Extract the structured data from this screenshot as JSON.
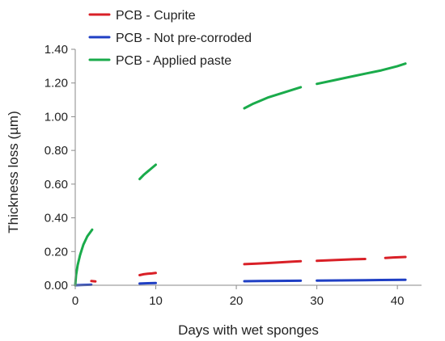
{
  "chart_data": {
    "type": "line",
    "title": "",
    "xlabel": "Days with wet sponges",
    "ylabel": "Thickness loss (µm)",
    "xlim": [
      0,
      43
    ],
    "ylim": [
      0,
      1.4
    ],
    "x_ticks": [
      0,
      10,
      20,
      30,
      40
    ],
    "y_ticks": [
      0.0,
      0.2,
      0.4,
      0.6,
      0.8,
      1.0,
      1.2,
      1.4
    ],
    "x_tick_labels": [
      "0",
      "10",
      "20",
      "30",
      "40"
    ],
    "y_tick_labels": [
      "0.00",
      "0.20",
      "0.40",
      "0.60",
      "0.80",
      "1.00",
      "1.20",
      "1.40"
    ],
    "grid": false,
    "legend_position": "top-left",
    "series": [
      {
        "name": "PCB - Cuprite",
        "color": "#d92027",
        "segments": [
          [
            [
              2.0,
              0.025
            ],
            [
              2.5,
              0.023
            ]
          ],
          [
            [
              8.0,
              0.06
            ],
            [
              8.5,
              0.065
            ],
            [
              9.0,
              0.068
            ],
            [
              9.5,
              0.07
            ],
            [
              10.0,
              0.073
            ]
          ],
          [
            [
              21.0,
              0.125
            ],
            [
              22.5,
              0.128
            ],
            [
              24.0,
              0.132
            ],
            [
              25.5,
              0.136
            ],
            [
              27.0,
              0.14
            ],
            [
              28.0,
              0.143
            ]
          ],
          [
            [
              30.0,
              0.145
            ],
            [
              31.5,
              0.148
            ],
            [
              33.0,
              0.151
            ],
            [
              34.5,
              0.154
            ],
            [
              36.0,
              0.156
            ]
          ],
          [
            [
              38.5,
              0.162
            ],
            [
              39.5,
              0.165
            ],
            [
              41.0,
              0.168
            ]
          ]
        ]
      },
      {
        "name": "PCB - Not pre-corroded",
        "color": "#1f3fc4",
        "segments": [
          [
            [
              0.0,
              0.0
            ],
            [
              1.0,
              0.002
            ],
            [
              2.0,
              0.003
            ]
          ],
          [
            [
              8.0,
              0.01
            ],
            [
              9.0,
              0.012
            ],
            [
              10.0,
              0.013
            ]
          ],
          [
            [
              21.0,
              0.024
            ],
            [
              23.0,
              0.025
            ],
            [
              25.0,
              0.026
            ],
            [
              28.0,
              0.027
            ]
          ],
          [
            [
              30.0,
              0.028
            ],
            [
              33.0,
              0.029
            ],
            [
              36.0,
              0.03
            ],
            [
              38.0,
              0.031
            ],
            [
              41.0,
              0.032
            ]
          ]
        ]
      },
      {
        "name": "PCB - Applied paste",
        "color": "#1aab4b",
        "segments": [
          [
            [
              0.0,
              0.0
            ],
            [
              0.1,
              0.06
            ],
            [
              0.3,
              0.12
            ],
            [
              0.6,
              0.18
            ],
            [
              1.0,
              0.24
            ],
            [
              1.5,
              0.29
            ],
            [
              2.1,
              0.33
            ]
          ],
          [
            [
              8.0,
              0.63
            ],
            [
              8.5,
              0.655
            ],
            [
              9.0,
              0.675
            ],
            [
              9.5,
              0.695
            ],
            [
              10.0,
              0.715
            ]
          ],
          [
            [
              21.0,
              1.05
            ],
            [
              22.0,
              1.075
            ],
            [
              23.0,
              1.095
            ],
            [
              24.0,
              1.115
            ],
            [
              25.0,
              1.13
            ],
            [
              26.0,
              1.145
            ],
            [
              27.0,
              1.16
            ],
            [
              28.0,
              1.175
            ]
          ],
          [
            [
              30.0,
              1.195
            ],
            [
              32.0,
              1.215
            ],
            [
              34.0,
              1.235
            ],
            [
              36.0,
              1.255
            ],
            [
              38.0,
              1.275
            ],
            [
              40.0,
              1.3
            ],
            [
              41.0,
              1.315
            ]
          ]
        ]
      }
    ]
  }
}
